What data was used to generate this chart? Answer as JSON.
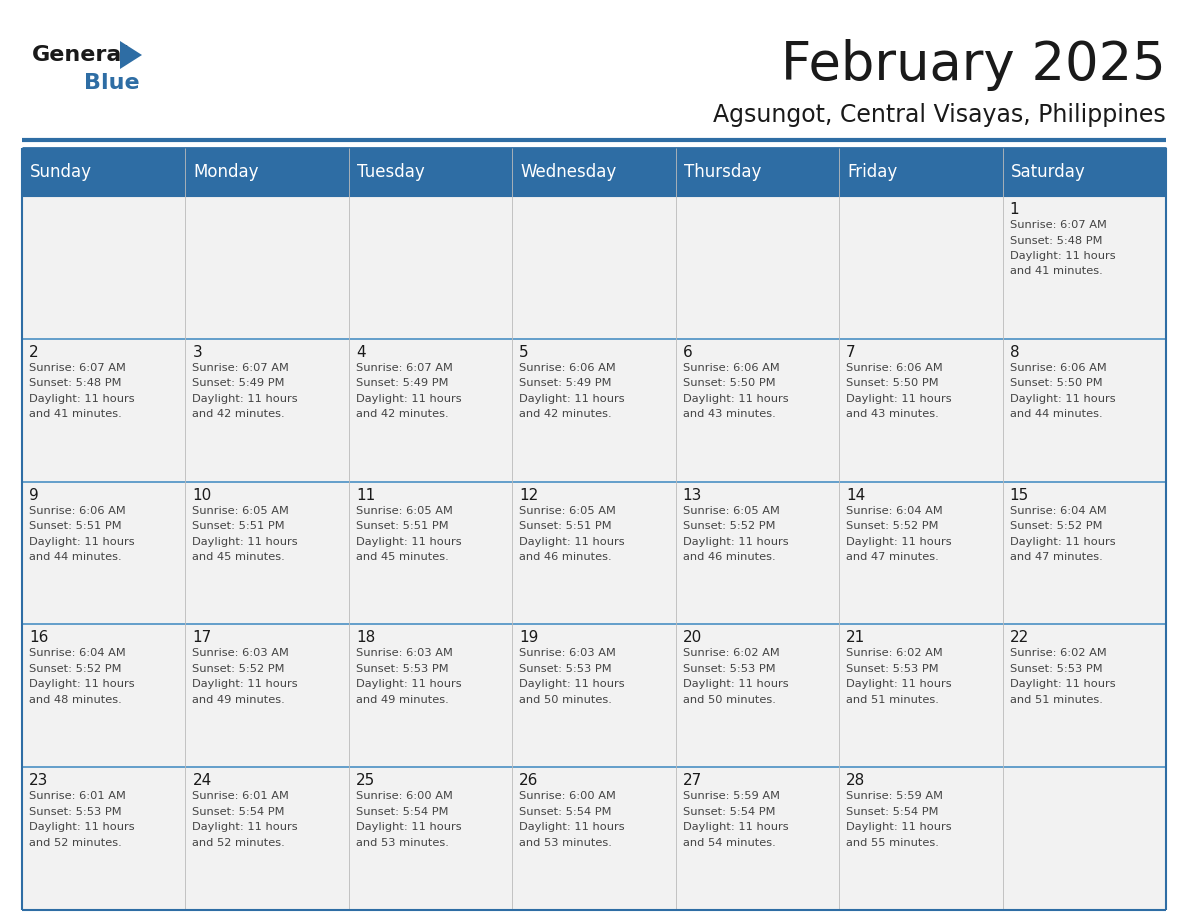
{
  "title": "February 2025",
  "subtitle": "Agsungot, Central Visayas, Philippines",
  "header_bg": "#2E6DA4",
  "header_text": "#FFFFFF",
  "header_days": [
    "Sunday",
    "Monday",
    "Tuesday",
    "Wednesday",
    "Thursday",
    "Friday",
    "Saturday"
  ],
  "title_fontsize": 38,
  "subtitle_fontsize": 17,
  "day_name_fontsize": 12,
  "day_num_fontsize": 11,
  "cell_text_fontsize": 8.2,
  "bg_color": "#FFFFFF",
  "cell_bg": "#F2F2F2",
  "last_row_bg": "#F9F9F9",
  "border_color": "#2E6DA4",
  "row_line_color": "#4A90C4",
  "text_color": "#333333",
  "calendar": [
    [
      null,
      null,
      null,
      null,
      null,
      null,
      1
    ],
    [
      2,
      3,
      4,
      5,
      6,
      7,
      8
    ],
    [
      9,
      10,
      11,
      12,
      13,
      14,
      15
    ],
    [
      16,
      17,
      18,
      19,
      20,
      21,
      22
    ],
    [
      23,
      24,
      25,
      26,
      27,
      28,
      null
    ]
  ],
  "sunrise": {
    "1": "6:07 AM",
    "2": "6:07 AM",
    "3": "6:07 AM",
    "4": "6:07 AM",
    "5": "6:06 AM",
    "6": "6:06 AM",
    "7": "6:06 AM",
    "8": "6:06 AM",
    "9": "6:06 AM",
    "10": "6:05 AM",
    "11": "6:05 AM",
    "12": "6:05 AM",
    "13": "6:05 AM",
    "14": "6:04 AM",
    "15": "6:04 AM",
    "16": "6:04 AM",
    "17": "6:03 AM",
    "18": "6:03 AM",
    "19": "6:03 AM",
    "20": "6:02 AM",
    "21": "6:02 AM",
    "22": "6:02 AM",
    "23": "6:01 AM",
    "24": "6:01 AM",
    "25": "6:00 AM",
    "26": "6:00 AM",
    "27": "5:59 AM",
    "28": "5:59 AM"
  },
  "sunset": {
    "1": "5:48 PM",
    "2": "5:48 PM",
    "3": "5:49 PM",
    "4": "5:49 PM",
    "5": "5:49 PM",
    "6": "5:50 PM",
    "7": "5:50 PM",
    "8": "5:50 PM",
    "9": "5:51 PM",
    "10": "5:51 PM",
    "11": "5:51 PM",
    "12": "5:51 PM",
    "13": "5:52 PM",
    "14": "5:52 PM",
    "15": "5:52 PM",
    "16": "5:52 PM",
    "17": "5:52 PM",
    "18": "5:53 PM",
    "19": "5:53 PM",
    "20": "5:53 PM",
    "21": "5:53 PM",
    "22": "5:53 PM",
    "23": "5:53 PM",
    "24": "5:54 PM",
    "25": "5:54 PM",
    "26": "5:54 PM",
    "27": "5:54 PM",
    "28": "5:54 PM"
  },
  "daylight": {
    "1": "11 hours and 41 minutes.",
    "2": "11 hours and 41 minutes.",
    "3": "11 hours and 42 minutes.",
    "4": "11 hours and 42 minutes.",
    "5": "11 hours and 42 minutes.",
    "6": "11 hours and 43 minutes.",
    "7": "11 hours and 43 minutes.",
    "8": "11 hours and 44 minutes.",
    "9": "11 hours and 44 minutes.",
    "10": "11 hours and 45 minutes.",
    "11": "11 hours and 45 minutes.",
    "12": "11 hours and 46 minutes.",
    "13": "11 hours and 46 minutes.",
    "14": "11 hours and 47 minutes.",
    "15": "11 hours and 47 minutes.",
    "16": "11 hours and 48 minutes.",
    "17": "11 hours and 49 minutes.",
    "18": "11 hours and 49 minutes.",
    "19": "11 hours and 50 minutes.",
    "20": "11 hours and 50 minutes.",
    "21": "11 hours and 51 minutes.",
    "22": "11 hours and 51 minutes.",
    "23": "11 hours and 52 minutes.",
    "24": "11 hours and 52 minutes.",
    "25": "11 hours and 53 minutes.",
    "26": "11 hours and 53 minutes.",
    "27": "11 hours and 54 minutes.",
    "28": "11 hours and 55 minutes."
  }
}
